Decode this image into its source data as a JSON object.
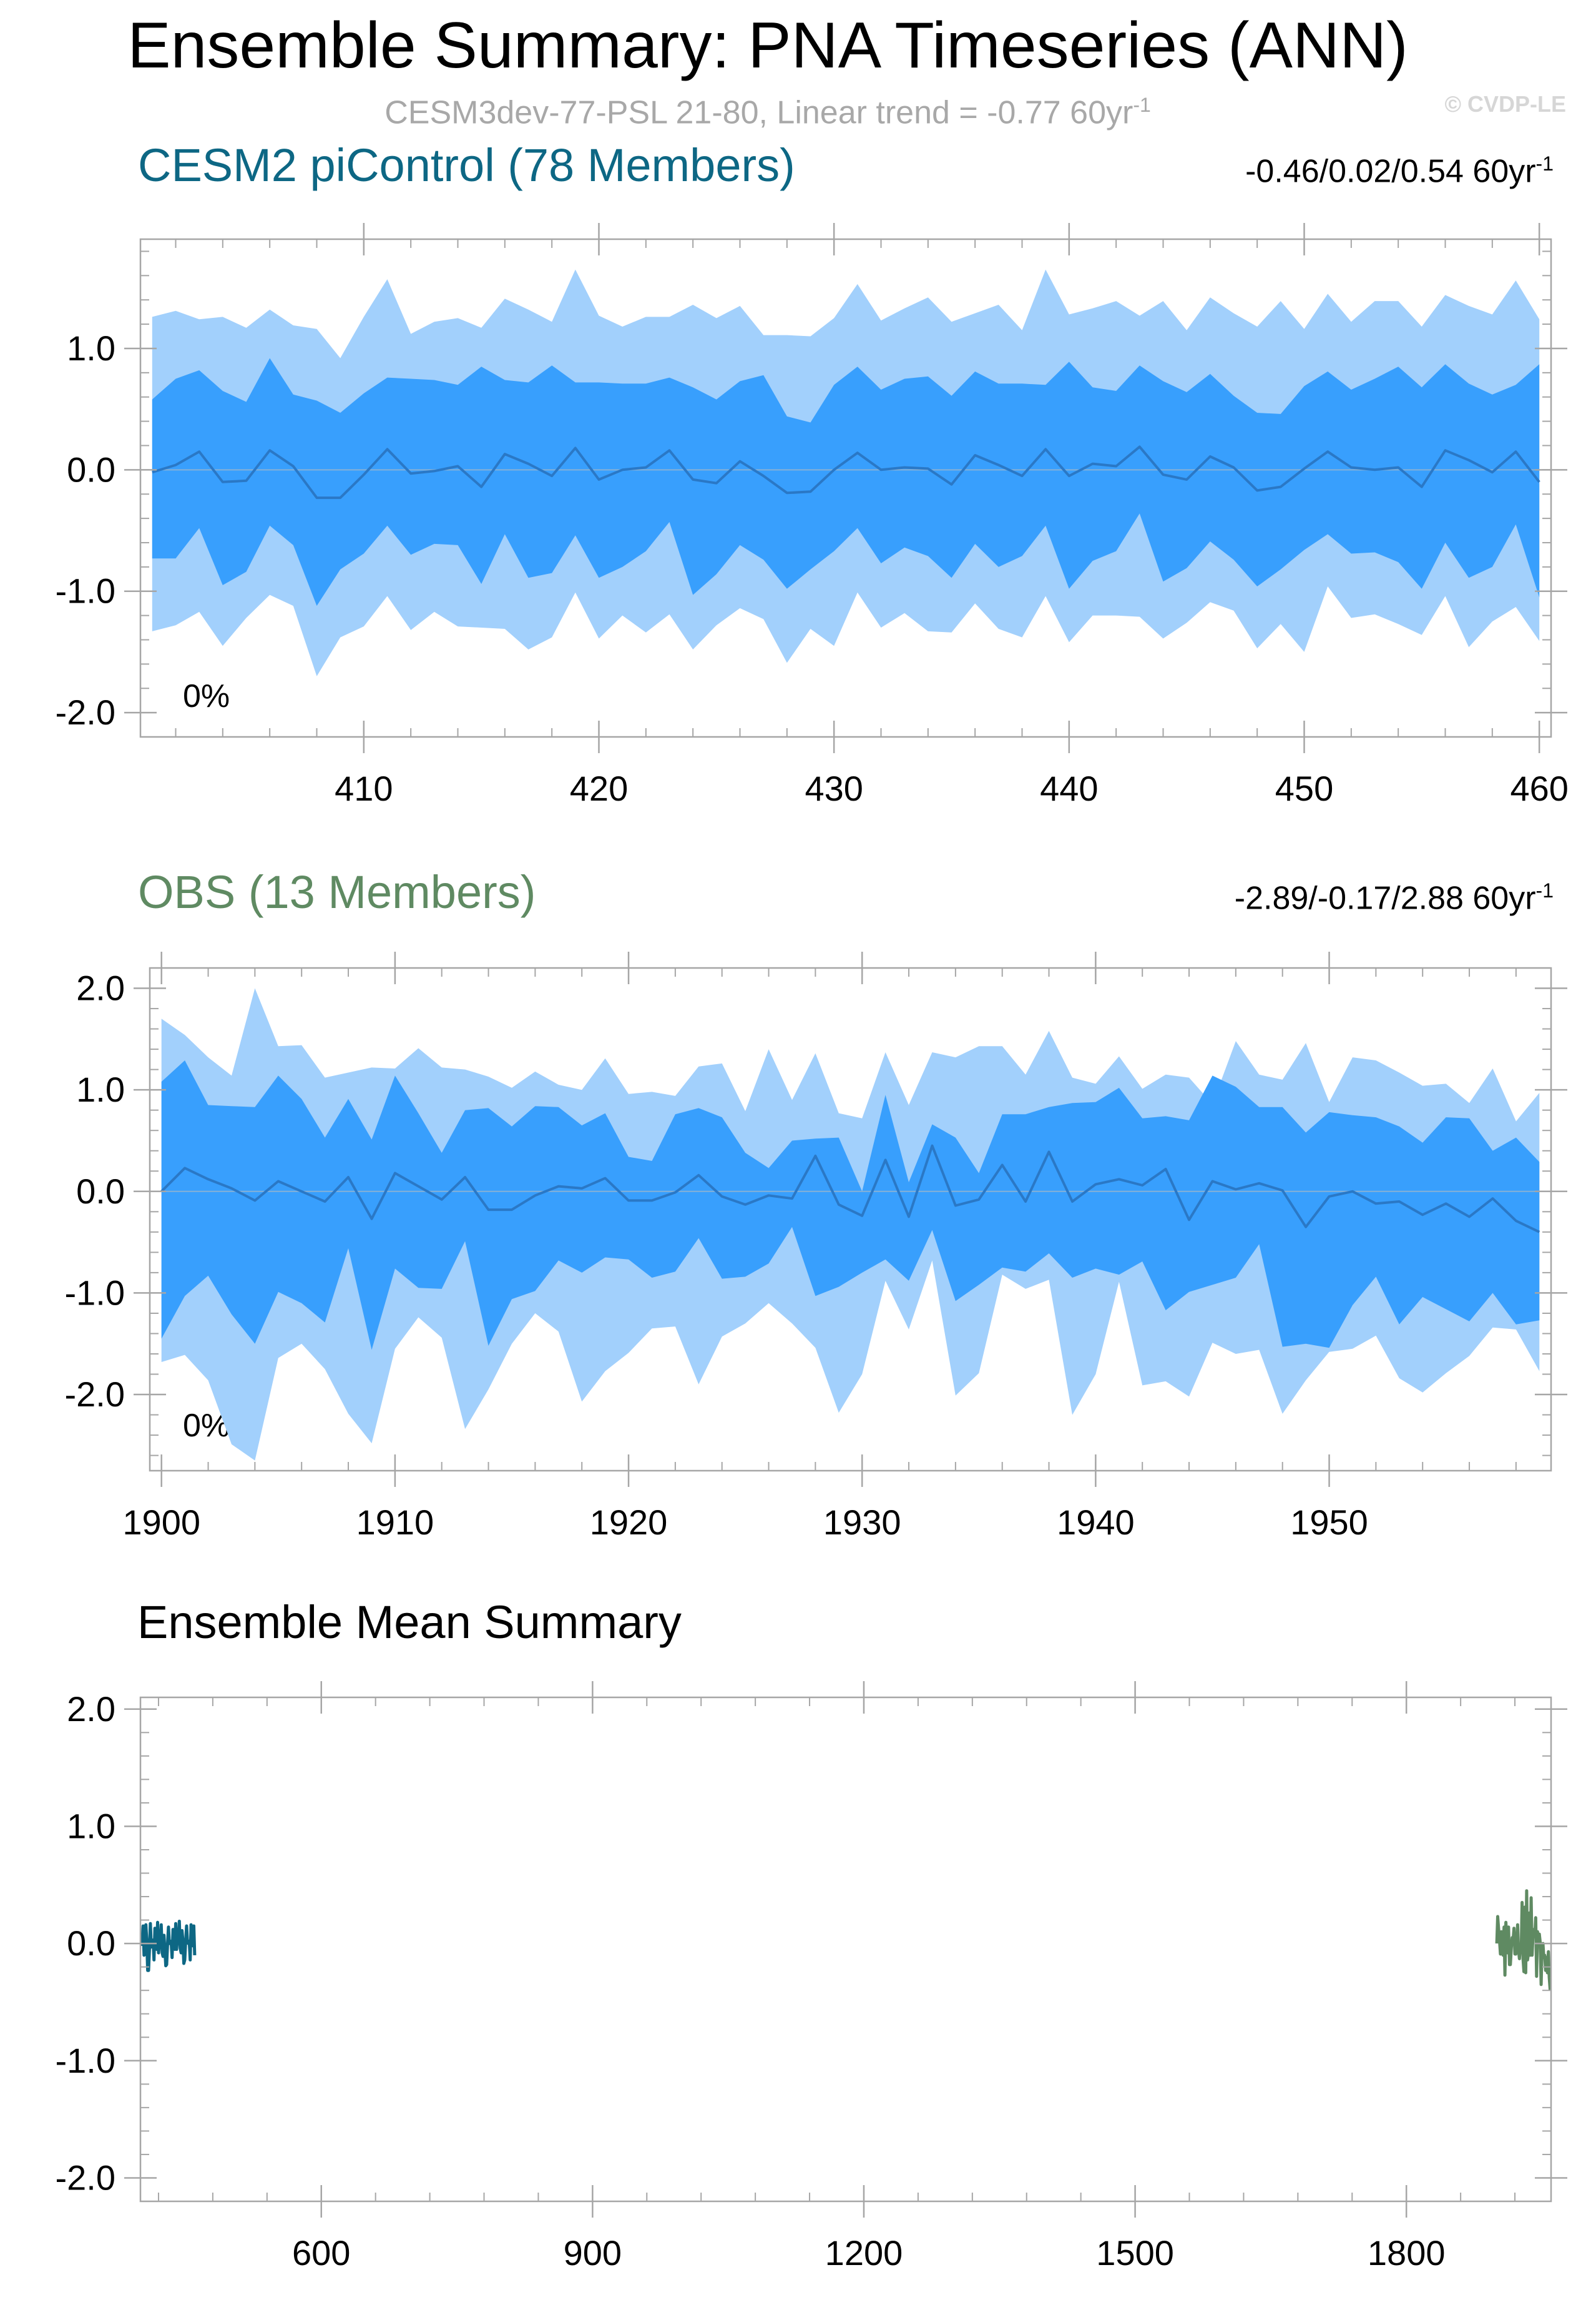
{
  "title": "Ensemble Summary: PNA Timeseries (ANN)",
  "subtitle": "CESM3dev-77-PSL 21-80, Linear trend = -0.77 60yr",
  "subtitle_sup": "-1",
  "copyright": "© CVDP-LE",
  "colors": {
    "outer_band": "#a2d0fc",
    "inner_band": "#389ffd",
    "median_line": "#2a78c6",
    "cesm2": "#0d6784",
    "obs": "#5f8a62",
    "frame": "#a6a6a6",
    "zero_line": "#bdbdbd"
  },
  "chart_data": [
    {
      "type": "area",
      "title": "CESM2 piControl (78 Members)",
      "trend_text": "-0.46/0.02/0.54 60yr",
      "trend_sup": "-1",
      "percent_label": "0%",
      "x_start": 401,
      "xlim": [
        400.5,
        460.5
      ],
      "ylim": [
        -2.2,
        1.9
      ],
      "xticks": [
        410,
        420,
        430,
        440,
        450,
        460
      ],
      "yticks": [
        1.0,
        0.0,
        -1.0,
        -2.0
      ],
      "ytick_labels": [
        "1.0",
        "0.0",
        "-1.0",
        "-2.0"
      ],
      "median": [
        -0.02,
        0.04,
        0.15,
        -0.1,
        -0.09,
        0.16,
        0.03,
        -0.23,
        -0.23,
        -0.04,
        0.17,
        -0.03,
        -0.01,
        0.03,
        -0.14,
        0.13,
        0.05,
        -0.05,
        0.18,
        -0.08,
        0.0,
        0.02,
        0.16,
        -0.08,
        -0.11,
        0.07,
        -0.05,
        -0.19,
        -0.18,
        0.0,
        0.14,
        0.0,
        0.02,
        0.01,
        -0.12,
        0.12,
        0.04,
        -0.05,
        0.17,
        -0.05,
        0.05,
        0.03,
        0.19,
        -0.04,
        -0.08,
        0.11,
        0.02,
        -0.17,
        -0.14,
        0.01,
        0.15,
        0.02,
        0.0,
        0.02,
        -0.14,
        0.16,
        0.08,
        -0.02,
        0.15,
        -0.1
      ],
      "inner_upper": [
        0.58,
        0.75,
        0.82,
        0.65,
        0.56,
        0.92,
        0.62,
        0.57,
        0.47,
        0.63,
        0.76,
        0.75,
        0.74,
        0.7,
        0.85,
        0.74,
        0.72,
        0.86,
        0.72,
        0.72,
        0.71,
        0.71,
        0.76,
        0.68,
        0.58,
        0.73,
        0.78,
        0.44,
        0.39,
        0.7,
        0.85,
        0.66,
        0.75,
        0.77,
        0.61,
        0.81,
        0.71,
        0.71,
        0.7,
        0.89,
        0.68,
        0.65,
        0.86,
        0.73,
        0.64,
        0.79,
        0.61,
        0.47,
        0.46,
        0.69,
        0.81,
        0.66,
        0.75,
        0.85,
        0.68,
        0.87,
        0.71,
        0.62,
        0.7,
        0.87
      ],
      "inner_lower": [
        -0.73,
        -0.73,
        -0.48,
        -0.95,
        -0.84,
        -0.46,
        -0.62,
        -1.12,
        -0.82,
        -0.69,
        -0.46,
        -0.7,
        -0.61,
        -0.62,
        -0.94,
        -0.53,
        -0.89,
        -0.85,
        -0.54,
        -0.89,
        -0.8,
        -0.67,
        -0.43,
        -1.03,
        -0.86,
        -0.62,
        -0.74,
        -0.98,
        -0.82,
        -0.67,
        -0.48,
        -0.77,
        -0.64,
        -0.71,
        -0.89,
        -0.61,
        -0.8,
        -0.71,
        -0.46,
        -0.98,
        -0.75,
        -0.67,
        -0.36,
        -0.92,
        -0.81,
        -0.59,
        -0.74,
        -0.96,
        -0.82,
        -0.66,
        -0.53,
        -0.69,
        -0.68,
        -0.76,
        -0.98,
        -0.6,
        -0.89,
        -0.8,
        -0.45,
        -1.05
      ],
      "outer_upper": [
        1.26,
        1.31,
        1.24,
        1.26,
        1.17,
        1.32,
        1.19,
        1.16,
        0.92,
        1.26,
        1.57,
        1.12,
        1.22,
        1.25,
        1.17,
        1.41,
        1.32,
        1.22,
        1.65,
        1.27,
        1.18,
        1.26,
        1.26,
        1.36,
        1.25,
        1.35,
        1.11,
        1.11,
        1.1,
        1.25,
        1.53,
        1.23,
        1.33,
        1.42,
        1.22,
        1.29,
        1.36,
        1.15,
        1.65,
        1.28,
        1.33,
        1.39,
        1.27,
        1.39,
        1.15,
        1.42,
        1.29,
        1.18,
        1.39,
        1.16,
        1.45,
        1.22,
        1.39,
        1.39,
        1.18,
        1.44,
        1.35,
        1.28,
        1.56,
        1.24
      ],
      "outer_lower": [
        -1.33,
        -1.28,
        -1.17,
        -1.45,
        -1.22,
        -1.03,
        -1.12,
        -1.7,
        -1.38,
        -1.29,
        -1.04,
        -1.32,
        -1.17,
        -1.29,
        -1.3,
        -1.31,
        -1.48,
        -1.38,
        -1.01,
        -1.39,
        -1.2,
        -1.34,
        -1.19,
        -1.48,
        -1.28,
        -1.14,
        -1.23,
        -1.59,
        -1.31,
        -1.45,
        -1.01,
        -1.3,
        -1.18,
        -1.33,
        -1.34,
        -1.1,
        -1.31,
        -1.38,
        -1.04,
        -1.42,
        -1.2,
        -1.2,
        -1.21,
        -1.39,
        -1.26,
        -1.09,
        -1.16,
        -1.47,
        -1.27,
        -1.5,
        -0.96,
        -1.22,
        -1.19,
        -1.27,
        -1.36,
        -1.04,
        -1.46,
        -1.25,
        -1.13,
        -1.41
      ]
    },
    {
      "type": "area",
      "title": "OBS (13 Members)",
      "trend_text": "-2.89/-0.17/2.88 60yr",
      "trend_sup": "-1",
      "percent_label": "0%",
      "x_start": 1900,
      "xlim": [
        1899.5,
        1959.5
      ],
      "ylim": [
        -2.75,
        2.2
      ],
      "xticks": [
        1900,
        1910,
        1920,
        1930,
        1940,
        1950
      ],
      "yticks": [
        2.0,
        1.0,
        0.0,
        -1.0,
        -2.0
      ],
      "ytick_labels": [
        "2.0",
        "1.0",
        "0.0",
        "-1.0",
        "-2.0"
      ],
      "median": [
        0.0,
        0.23,
        0.12,
        0.03,
        -0.09,
        0.1,
        0.0,
        -0.1,
        0.14,
        -0.27,
        0.18,
        0.05,
        -0.08,
        0.14,
        -0.18,
        -0.18,
        -0.04,
        0.05,
        0.03,
        0.13,
        -0.09,
        -0.09,
        -0.01,
        0.16,
        -0.05,
        -0.13,
        -0.04,
        -0.07,
        0.35,
        -0.13,
        -0.24,
        0.31,
        -0.25,
        0.45,
        -0.14,
        -0.08,
        0.26,
        -0.1,
        0.39,
        -0.1,
        0.07,
        0.12,
        0.06,
        0.22,
        -0.28,
        0.1,
        0.02,
        0.08,
        0.01,
        -0.35,
        -0.05,
        0.0,
        -0.12,
        -0.1,
        -0.23,
        -0.12,
        -0.25,
        -0.07,
        -0.29,
        -0.4
      ],
      "inner_upper": [
        1.08,
        1.29,
        0.85,
        0.84,
        0.83,
        1.14,
        0.91,
        0.53,
        0.91,
        0.51,
        1.14,
        0.77,
        0.38,
        0.8,
        0.82,
        0.64,
        0.84,
        0.83,
        0.65,
        0.77,
        0.34,
        0.3,
        0.76,
        0.82,
        0.73,
        0.38,
        0.23,
        0.5,
        0.52,
        0.53,
        0.0,
        0.95,
        0.09,
        0.66,
        0.53,
        0.18,
        0.76,
        0.76,
        0.83,
        0.87,
        0.88,
        1.02,
        0.72,
        0.74,
        0.7,
        1.14,
        1.03,
        0.83,
        0.83,
        0.58,
        0.78,
        0.75,
        0.73,
        0.64,
        0.48,
        0.73,
        0.72,
        0.4,
        0.53,
        0.29
      ],
      "inner_lower": [
        -1.45,
        -1.03,
        -0.83,
        -1.21,
        -1.5,
        -0.99,
        -1.1,
        -1.29,
        -0.56,
        -1.56,
        -0.76,
        -0.95,
        -0.96,
        -0.49,
        -1.52,
        -1.06,
        -0.98,
        -0.68,
        -0.8,
        -0.65,
        -0.67,
        -0.85,
        -0.79,
        -0.46,
        -0.86,
        -0.84,
        -0.71,
        -0.35,
        -1.03,
        -0.94,
        -0.8,
        -0.67,
        -0.88,
        -0.38,
        -1.08,
        -0.92,
        -0.75,
        -0.79,
        -0.61,
        -0.85,
        -0.76,
        -0.82,
        -0.69,
        -1.17,
        -0.99,
        -0.92,
        -0.85,
        -0.52,
        -1.53,
        -1.5,
        -1.54,
        -1.12,
        -0.84,
        -1.31,
        -1.04,
        -1.16,
        -1.28,
        -1.0,
        -1.31,
        -1.27
      ],
      "outer_upper": [
        1.7,
        1.54,
        1.32,
        1.14,
        2.0,
        1.43,
        1.44,
        1.12,
        1.17,
        1.22,
        1.21,
        1.41,
        1.22,
        1.2,
        1.13,
        1.02,
        1.18,
        1.05,
        1.0,
        1.31,
        0.96,
        0.98,
        0.94,
        1.23,
        1.26,
        0.79,
        1.4,
        0.9,
        1.36,
        0.77,
        0.72,
        1.37,
        0.85,
        1.37,
        1.32,
        1.43,
        1.43,
        1.15,
        1.58,
        1.12,
        1.06,
        1.33,
        1.01,
        1.15,
        1.12,
        0.86,
        1.48,
        1.15,
        1.1,
        1.46,
        0.88,
        1.32,
        1.29,
        1.17,
        1.04,
        1.06,
        0.87,
        1.21,
        0.69,
        0.97
      ],
      "outer_lower": [
        -1.68,
        -1.61,
        -1.86,
        -2.49,
        -2.65,
        -1.64,
        -1.5,
        -1.75,
        -2.19,
        -2.48,
        -1.55,
        -1.24,
        -1.44,
        -2.34,
        -1.95,
        -1.5,
        -1.2,
        -1.38,
        -2.07,
        -1.77,
        -1.59,
        -1.35,
        -1.33,
        -1.9,
        -1.43,
        -1.3,
        -1.1,
        -1.3,
        -1.54,
        -2.18,
        -1.8,
        -0.88,
        -1.36,
        -0.68,
        -2.01,
        -1.79,
        -0.82,
        -0.96,
        -0.87,
        -2.2,
        -1.8,
        -0.89,
        -1.91,
        -1.87,
        -2.02,
        -1.49,
        -1.6,
        -1.56,
        -2.19,
        -1.86,
        -1.58,
        -1.55,
        -1.42,
        -1.84,
        -1.98,
        -1.79,
        -1.62,
        -1.34,
        -1.36,
        -1.77
      ]
    },
    {
      "type": "line",
      "title": "Ensemble Mean Summary",
      "xlim": [
        400,
        1960
      ],
      "ylim": [
        -2.2,
        2.1
      ],
      "xticks": [
        600,
        900,
        1200,
        1500,
        1800
      ],
      "yticks": [
        2.0,
        1.0,
        0.0,
        -1.0,
        -2.0
      ],
      "ytick_labels": [
        "2.0",
        "1.0",
        "0.0",
        "-1.0",
        "-2.0"
      ],
      "series": [
        {
          "name": "CESM2 piControl (78 Members)",
          "x_start": 401,
          "values": [
            -0.02,
            0.04,
            0.15,
            -0.1,
            -0.09,
            0.16,
            0.03,
            -0.23,
            -0.23,
            -0.04,
            0.17,
            -0.03,
            -0.01,
            0.03,
            -0.14,
            0.13,
            0.05,
            -0.05,
            0.18,
            -0.08,
            0.0,
            0.02,
            0.16,
            -0.08,
            -0.11,
            0.07,
            -0.05,
            -0.19,
            -0.18,
            0.0,
            0.14,
            0.0,
            0.02,
            0.01,
            -0.12,
            0.12,
            0.04,
            -0.05,
            0.17,
            -0.05,
            0.05,
            0.03,
            0.19,
            -0.04,
            -0.08,
            0.11,
            0.02,
            -0.17,
            -0.14,
            0.01,
            0.15,
            0.02,
            0.0,
            0.02,
            -0.14,
            0.16,
            0.08,
            -0.02,
            0.15,
            -0.1
          ]
        },
        {
          "name": "OBS (13 Members)",
          "x_start": 1900,
          "values": [
            0.0,
            0.23,
            0.12,
            0.03,
            -0.09,
            0.1,
            0.0,
            -0.1,
            0.14,
            -0.27,
            0.18,
            0.05,
            -0.08,
            0.14,
            -0.18,
            -0.18,
            -0.04,
            0.05,
            0.03,
            0.13,
            -0.09,
            -0.09,
            -0.01,
            0.16,
            -0.05,
            -0.13,
            -0.04,
            -0.07,
            0.35,
            -0.13,
            -0.24,
            0.31,
            -0.25,
            0.45,
            -0.14,
            -0.08,
            0.26,
            -0.1,
            0.39,
            -0.1,
            0.07,
            0.12,
            0.06,
            0.22,
            -0.28,
            0.1,
            0.02,
            0.08,
            0.01,
            -0.35,
            -0.05,
            0.0,
            -0.12,
            -0.1,
            -0.23,
            -0.12,
            -0.25,
            -0.07,
            -0.29,
            -0.4
          ]
        }
      ]
    }
  ]
}
